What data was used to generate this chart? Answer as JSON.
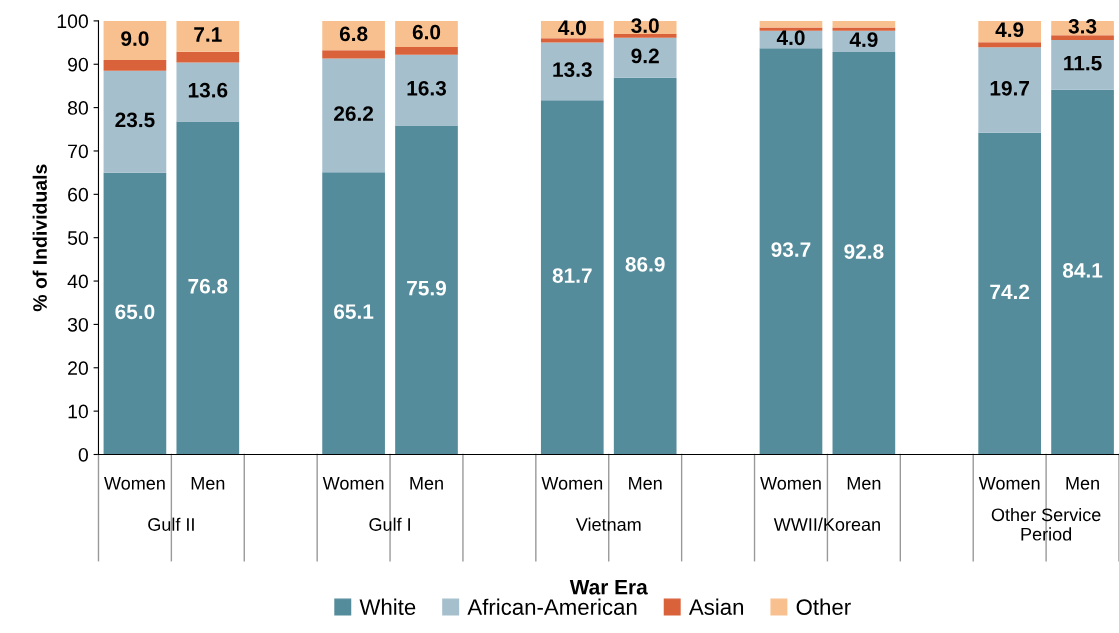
{
  "chart_data": {
    "type": "bar",
    "stacked": true,
    "xlabel": "War Era",
    "ylabel": "% of Individuals",
    "categories": [
      "Women",
      "Men",
      null,
      "Women",
      "Men",
      null,
      "Women",
      "Men",
      null,
      "Women",
      "Men",
      null,
      "Women",
      "Men"
    ],
    "annotations": [
      "Gulf II",
      "Gulf I",
      "Vietnam",
      "WWII/Korean",
      "Other Service Period"
    ],
    "series": [
      {
        "name": "White",
        "color": "#558c9b",
        "values": [
          65.0,
          76.8,
          null,
          65.1,
          75.9,
          null,
          81.7,
          86.9,
          null,
          93.7,
          92.8,
          null,
          74.2,
          84.1
        ],
        "value_labels": [
          "65.0",
          "76.8",
          null,
          "65.1",
          "75.9",
          null,
          "81.7",
          "86.9",
          null,
          "93.7",
          "92.8",
          null,
          "74.2",
          "84.1"
        ]
      },
      {
        "name": "African-American",
        "color": "#a5bfcd",
        "values": [
          23.5,
          13.6,
          null,
          26.2,
          16.3,
          null,
          13.3,
          9.2,
          null,
          4.0,
          4.9,
          null,
          19.7,
          11.5
        ],
        "value_labels": [
          "23.5",
          "13.6",
          null,
          "26.2",
          "16.3",
          null,
          "13.3",
          "9.2",
          null,
          "4.0",
          "4.9",
          null,
          "19.7",
          "11.5"
        ]
      },
      {
        "name": "Asian",
        "color": "#d9623b",
        "values": [
          2.5,
          2.5,
          null,
          1.9,
          1.8,
          null,
          1.0,
          0.9,
          null,
          0.8,
          0.8,
          null,
          1.2,
          1.1
        ],
        "value_labels": [
          null,
          null,
          null,
          null,
          null,
          null,
          null,
          null,
          null,
          null,
          null,
          null,
          null,
          null
        ]
      },
      {
        "name": "Other",
        "color": "#f9c08f",
        "values": [
          9.0,
          7.1,
          null,
          6.8,
          6.0,
          null,
          4.0,
          3.0,
          null,
          1.5,
          1.5,
          null,
          4.9,
          3.3
        ],
        "value_labels": [
          "9.0",
          "7.1",
          null,
          "6.8",
          "6.0",
          null,
          "4.0",
          "3.0",
          null,
          null,
          null,
          null,
          "4.9",
          "3.3"
        ]
      }
    ],
    "ylim": [
      0,
      100
    ],
    "yticks": [
      0,
      10,
      20,
      30,
      40,
      50,
      60,
      70,
      80,
      90,
      100
    ],
    "grid": false,
    "legend": "bottom"
  }
}
